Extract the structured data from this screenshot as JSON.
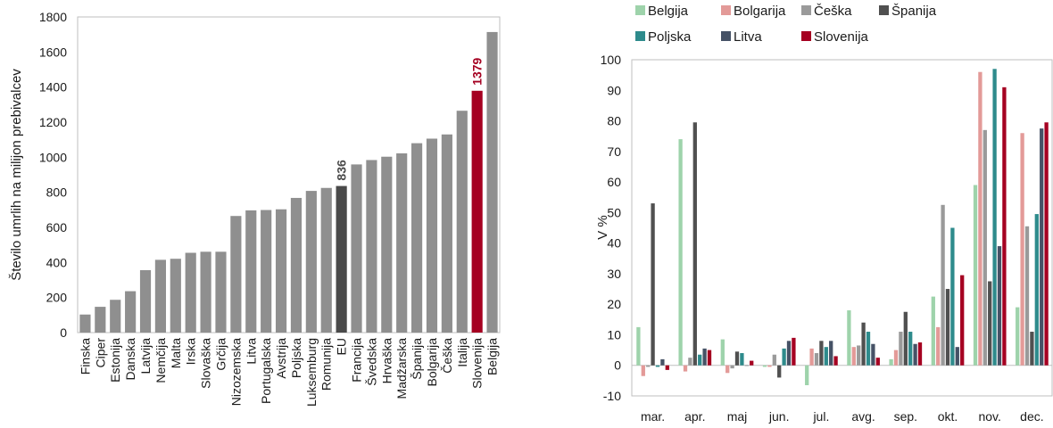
{
  "chart_data": [
    {
      "type": "bar",
      "ylabel": "Število umrlih na milijon prebivalcev",
      "ylim": [
        0,
        1800
      ],
      "yticks": [
        0,
        200,
        400,
        600,
        800,
        1000,
        1200,
        1400,
        1600,
        1800
      ],
      "grid": false,
      "categories": [
        "Finska",
        "Ciper",
        "Estonija",
        "Danska",
        "Latvija",
        "Nemčija",
        "Malta",
        "Irska",
        "Slovaška",
        "Grčija",
        "Nizozemska",
        "Litva",
        "Portugalska",
        "Avstrija",
        "Poljska",
        "Luksemburg",
        "Romunija",
        "EU",
        "Francija",
        "Švedska",
        "Hrvaška",
        "Madžarska",
        "Španija",
        "Bolgarija",
        "Češka",
        "Italija",
        "Slovenija",
        "Belgija"
      ],
      "values": [
        103,
        147,
        187,
        236,
        356,
        415,
        421,
        455,
        461,
        461,
        665,
        697,
        699,
        703,
        768,
        808,
        825,
        836,
        959,
        984,
        1003,
        1022,
        1080,
        1106,
        1130,
        1265,
        1379,
        1714
      ],
      "colors": {
        "default": "#8f8f8f",
        "EU": "#4a4a4a",
        "Slovenija": "#a50021"
      },
      "labeled": [
        {
          "category": "EU",
          "label": "836",
          "color": "#4a4a4a"
        },
        {
          "category": "Slovenija",
          "label": "1379",
          "color": "#a50021"
        }
      ]
    },
    {
      "type": "bar",
      "ylabel": "V %",
      "ylim": [
        -10,
        100
      ],
      "yticks": [
        -10,
        0,
        10,
        20,
        30,
        40,
        50,
        60,
        70,
        80,
        90,
        100
      ],
      "grid": false,
      "legend": "top",
      "categories": [
        "mar.",
        "apr.",
        "maj",
        "jun.",
        "jul.",
        "avg.",
        "sep.",
        "okt.",
        "nov.",
        "dec."
      ],
      "series": [
        {
          "name": "Belgija",
          "color": "#9ed3ab",
          "values": [
            12.5,
            74,
            8.5,
            -0.5,
            -6.5,
            18,
            2,
            22.5,
            59,
            19
          ]
        },
        {
          "name": "Bolgarija",
          "color": "#e39a98",
          "values": [
            -3.5,
            -2,
            -2.5,
            -0.5,
            5.5,
            6,
            5,
            12.5,
            96,
            76
          ]
        },
        {
          "name": "Češka",
          "color": "#9a9a9a",
          "values": [
            -0.5,
            2.5,
            -1,
            3.5,
            4,
            6.5,
            11,
            52.5,
            77,
            45.5
          ]
        },
        {
          "name": "Španija",
          "color": "#505050",
          "values": [
            53,
            79.5,
            4.5,
            -4,
            8,
            14,
            17.5,
            25,
            27.5,
            11
          ]
        },
        {
          "name": "Poljska",
          "color": "#2e8b8c",
          "values": [
            -0.5,
            3.5,
            4,
            5.5,
            6,
            11,
            11,
            45,
            97,
            49.5
          ]
        },
        {
          "name": "Litva",
          "color": "#465266",
          "values": [
            2,
            5.5,
            0,
            8,
            8,
            7,
            7,
            6,
            39,
            77.5
          ]
        },
        {
          "name": "Slovenija",
          "color": "#a50021",
          "values": [
            -1.5,
            5,
            1.5,
            9,
            3,
            2.5,
            7.5,
            29.5,
            91,
            79.5
          ]
        }
      ]
    }
  ]
}
